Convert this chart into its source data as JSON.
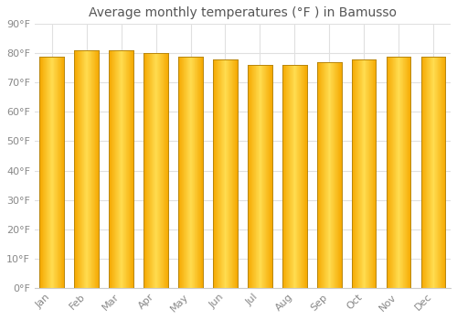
{
  "title": "Average monthly temperatures (°F ) in Bamusso",
  "months": [
    "Jan",
    "Feb",
    "Mar",
    "Apr",
    "May",
    "Jun",
    "Jul",
    "Aug",
    "Sep",
    "Oct",
    "Nov",
    "Dec"
  ],
  "values": [
    79,
    81,
    81,
    80,
    79,
    78,
    76,
    76,
    77,
    78,
    79,
    79
  ],
  "ylim": [
    0,
    90
  ],
  "yticks": [
    0,
    10,
    20,
    30,
    40,
    50,
    60,
    70,
    80,
    90
  ],
  "ytick_labels": [
    "0°F",
    "10°F",
    "20°F",
    "30°F",
    "40°F",
    "50°F",
    "60°F",
    "70°F",
    "80°F",
    "90°F"
  ],
  "bar_color_center": "#FFD740",
  "bar_color_edge": "#F5A800",
  "bar_border_color": "#B8860B",
  "background_color": "#FFFFFF",
  "grid_color": "#E0E0E0",
  "title_fontsize": 10,
  "tick_fontsize": 8,
  "xlabel_rotation": 45,
  "bar_width": 0.7
}
